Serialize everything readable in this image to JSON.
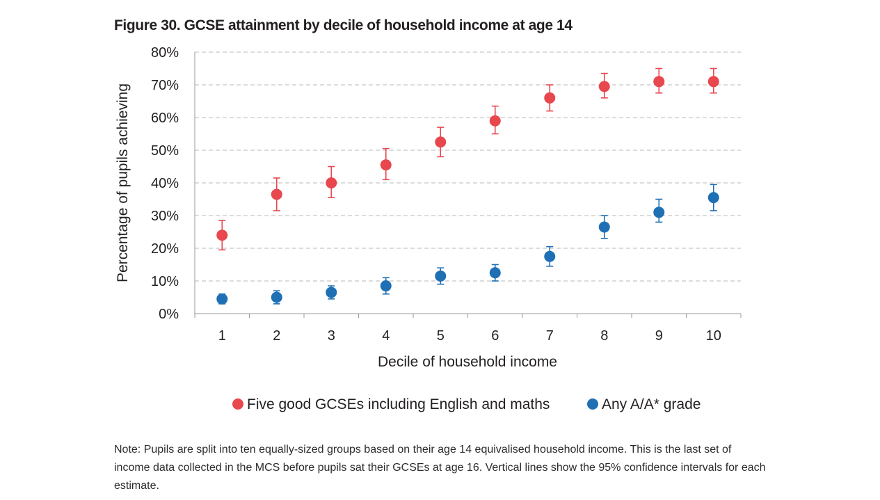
{
  "figure": {
    "title": "Figure 30. GCSE attainment by decile of household income at age 14",
    "note": "Note: Pupils are split into ten equally-sized groups based on their age 14 equivalised household income. This is the last set of income data collected in the MCS before pupils sat their GCSEs at age 16. Vertical lines show the 95% confidence intervals for each estimate."
  },
  "chart_data": {
    "type": "scatter",
    "title": "Figure 30. GCSE attainment by decile of household income at age 14",
    "xlabel": "Decile of household income",
    "ylabel": "Percentage of pupils achieving",
    "categories": [
      "1",
      "2",
      "3",
      "4",
      "5",
      "6",
      "7",
      "8",
      "9",
      "10"
    ],
    "yticks": [
      "0%",
      "10%",
      "20%",
      "30%",
      "40%",
      "50%",
      "60%",
      "70%",
      "80%"
    ],
    "ylim": [
      0,
      80
    ],
    "grid": "horizontal dashed",
    "legend_position": "bottom",
    "series": [
      {
        "name": "Five good GCSEs including English and maths",
        "color": "#e8474e",
        "values": [
          24,
          36.5,
          40,
          45.5,
          52.5,
          59,
          66,
          69.5,
          71,
          71
        ],
        "ci_low": [
          19.5,
          31.5,
          35.5,
          41,
          48,
          55,
          62,
          66,
          67.5,
          67.5
        ],
        "ci_high": [
          28.5,
          41.5,
          45,
          50.5,
          57,
          63.5,
          70,
          73.5,
          75,
          75
        ]
      },
      {
        "name": "Any A/A* grade",
        "color": "#1f6fb4",
        "values": [
          4.5,
          5,
          6.5,
          8.5,
          11.5,
          12.5,
          17.5,
          26.5,
          31,
          35.5
        ],
        "ci_low": [
          3,
          3,
          4.5,
          6,
          9,
          10,
          14.5,
          23,
          28,
          31.5
        ],
        "ci_high": [
          6,
          7,
          8.5,
          11,
          14,
          15,
          20.5,
          30,
          35,
          39.5
        ]
      }
    ]
  }
}
